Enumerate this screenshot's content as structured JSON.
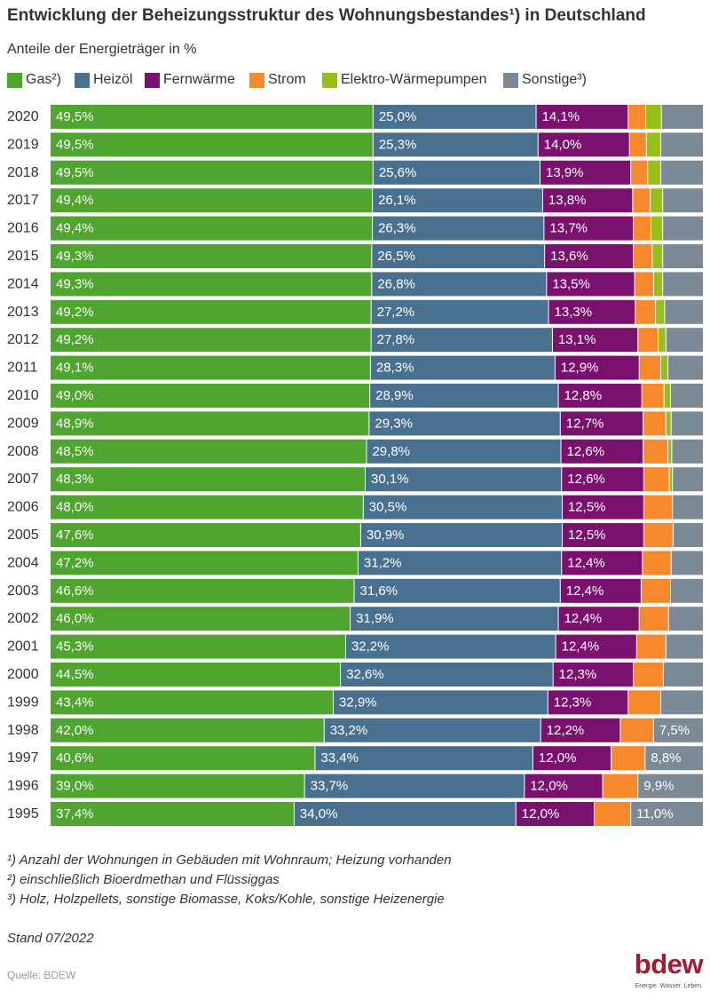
{
  "chart_data": {
    "type": "bar",
    "orientation": "horizontal",
    "stacked": true,
    "title": "Entwicklung der Beheizungsstruktur des Wohnungsbestandes¹) in Deutschland",
    "subtitle": "Anteile der Energieträger in %",
    "xlabel": "",
    "ylabel": "",
    "xlim": [
      0,
      100
    ],
    "value_suffix": "%",
    "decimal_separator": ",",
    "legend_position": "top-left",
    "categories": [
      "2020",
      "2019",
      "2018",
      "2017",
      "2016",
      "2015",
      "2014",
      "2013",
      "2012",
      "2011",
      "2010",
      "2009",
      "2008",
      "2007",
      "2006",
      "2005",
      "2004",
      "2003",
      "2002",
      "2001",
      "2000",
      "1999",
      "1998",
      "1997",
      "1996",
      "1995"
    ],
    "series": [
      {
        "name": "Gas²)",
        "color": "#4fa52f",
        "values": [
          49.5,
          49.5,
          49.5,
          49.4,
          49.4,
          49.3,
          49.3,
          49.2,
          49.2,
          49.1,
          49.0,
          48.9,
          48.5,
          48.3,
          48.0,
          47.6,
          47.2,
          46.6,
          46.0,
          45.3,
          44.5,
          43.4,
          42.0,
          40.6,
          39.0,
          37.4
        ]
      },
      {
        "name": "Heizöl",
        "color": "#49708f",
        "values": [
          25.0,
          25.3,
          25.6,
          26.1,
          26.3,
          26.5,
          26.8,
          27.2,
          27.8,
          28.3,
          28.9,
          29.3,
          29.8,
          30.1,
          30.5,
          30.9,
          31.2,
          31.6,
          31.9,
          32.2,
          32.6,
          32.9,
          33.2,
          33.4,
          33.7,
          34.0
        ]
      },
      {
        "name": "Fernwärme",
        "color": "#7b116e",
        "values": [
          14.1,
          14.0,
          13.9,
          13.8,
          13.7,
          13.6,
          13.5,
          13.3,
          13.1,
          12.9,
          12.8,
          12.7,
          12.6,
          12.6,
          12.5,
          12.5,
          12.4,
          12.4,
          12.4,
          12.4,
          12.3,
          12.3,
          12.2,
          12.0,
          12.0,
          12.0
        ]
      },
      {
        "name": "Strom",
        "color": "#f7892d",
        "values": [
          2.7,
          2.6,
          2.6,
          2.7,
          2.7,
          2.9,
          2.9,
          3.1,
          3.1,
          3.3,
          3.4,
          3.5,
          3.8,
          3.9,
          4.4,
          4.5,
          4.4,
          4.5,
          4.5,
          4.5,
          4.6,
          5.0,
          5.1,
          5.2,
          5.4,
          5.6
        ]
      },
      {
        "name": "Elektro-Wärmepumpen",
        "color": "#98be18",
        "values": [
          2.4,
          2.2,
          2.0,
          1.9,
          1.8,
          1.6,
          1.4,
          1.4,
          1.2,
          1.1,
          1.0,
          0.8,
          0.6,
          0.5,
          0,
          0,
          0,
          0,
          0,
          0,
          0,
          0,
          0,
          0,
          0,
          0
        ]
      },
      {
        "name": "Sonstige³)",
        "color": "#7b8a96",
        "values": [
          6.3,
          6.4,
          6.4,
          6.1,
          6.1,
          6.1,
          6.1,
          5.8,
          5.6,
          5.3,
          4.9,
          4.8,
          4.7,
          4.6,
          4.6,
          4.5,
          4.8,
          4.9,
          5.2,
          5.6,
          6.0,
          6.4,
          7.5,
          8.8,
          9.9,
          11.0
        ]
      }
    ]
  },
  "footnotes": [
    "¹) Anzahl der Wohnungen in Gebäuden mit Wohnraum; Heizung vorhanden",
    "²) einschließlich Bioerdmethan und Flüssiggas",
    "³) Holz, Holzpellets, sonstige Biomasse, Koks/Kohle, sonstige Heizenergie"
  ],
  "stand": "Stand 07/2022",
  "source": "Quelle: BDEW",
  "logo": {
    "wordmark": "bdew",
    "tagline": "Energie. Wasser. Leben.",
    "color": "#a8192e"
  }
}
